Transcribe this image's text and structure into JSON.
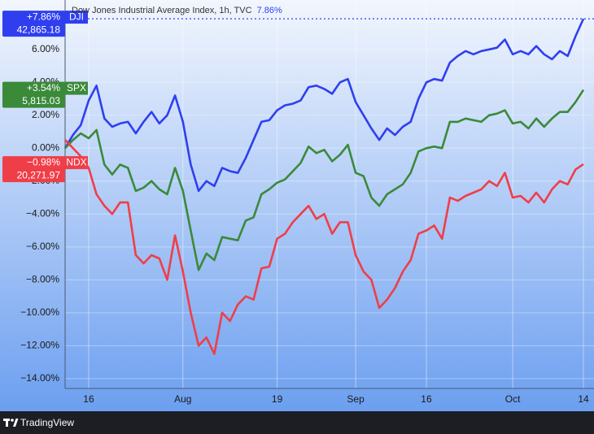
{
  "chart_data": {
    "type": "line",
    "legend_title": "Dow Jones Industrial Average Index, 1h, TVC",
    "legend_value": "7.86%",
    "watermark": "TradingView",
    "categories": [
      "",
      "",
      "",
      "16",
      "",
      "",
      "",
      "",
      "",
      "",
      "",
      "",
      "",
      "",
      "",
      "Aug",
      "",
      "",
      "",
      "",
      "",
      "",
      "",
      "",
      "",
      "",
      "",
      "19",
      "",
      "",
      "",
      "",
      "",
      "",
      "",
      "",
      "",
      "Sep",
      "",
      "",
      "",
      "",
      "",
      "",
      "",
      "",
      "16",
      "",
      "",
      "",
      "",
      "",
      "",
      "",
      "",
      "",
      "",
      "Oct",
      "",
      "",
      "",
      "",
      "",
      "",
      "",
      "",
      "14"
    ],
    "ylim": [
      -14.6,
      9.0
    ],
    "yticks": [
      {
        "value": -14,
        "label": "−14.00%"
      },
      {
        "value": -12,
        "label": "−12.00%"
      },
      {
        "value": -10,
        "label": "−10.00%"
      },
      {
        "value": -8,
        "label": "−8.00%"
      },
      {
        "value": -6,
        "label": "−6.00%"
      },
      {
        "value": -4,
        "label": "−4.00%"
      },
      {
        "value": -2,
        "label": "−2.00%"
      },
      {
        "value": 0,
        "label": "0.00%"
      },
      {
        "value": 2,
        "label": "2.00%"
      },
      {
        "value": 4,
        "label": "4.00%"
      },
      {
        "value": 6,
        "label": "6.00%"
      }
    ],
    "grid": true,
    "series": [
      {
        "name": "DJI",
        "color": "#2f3ff0",
        "last_label": "+7.86%",
        "last_price": "42,865.18",
        "values": [
          0,
          0.8,
          1.4,
          2.9,
          3.8,
          1.8,
          1.3,
          1.5,
          1.6,
          0.9,
          1.6,
          2.2,
          1.5,
          2.0,
          3.2,
          1.6,
          -1.0,
          -2.6,
          -2.0,
          -2.3,
          -1.2,
          -1.4,
          -1.5,
          -0.6,
          0.5,
          1.6,
          1.7,
          2.3,
          2.6,
          2.7,
          2.9,
          3.7,
          3.8,
          3.6,
          3.3,
          4.0,
          4.2,
          2.8,
          2.0,
          1.2,
          0.5,
          1.2,
          0.8,
          1.3,
          1.6,
          3.0,
          4.0,
          4.2,
          4.1,
          5.2,
          5.6,
          5.9,
          5.7,
          5.9,
          6.0,
          6.1,
          6.6,
          5.7,
          5.9,
          5.7,
          6.2,
          5.7,
          5.4,
          5.9,
          5.6,
          6.8,
          7.86
        ]
      },
      {
        "name": "SPX",
        "color": "#3a8a3a",
        "last_label": "+3.54%",
        "last_price": "5,815.03",
        "values": [
          0,
          0.5,
          0.9,
          0.6,
          1.1,
          -1.0,
          -1.6,
          -1.0,
          -1.2,
          -2.6,
          -2.4,
          -2.0,
          -2.5,
          -2.8,
          -1.2,
          -2.6,
          -5.0,
          -7.4,
          -6.4,
          -6.8,
          -5.4,
          -5.5,
          -5.6,
          -4.4,
          -4.2,
          -2.8,
          -2.5,
          -2.1,
          -1.9,
          -1.4,
          -0.9,
          0.1,
          -0.3,
          -0.1,
          -0.8,
          -0.4,
          0.2,
          -1.5,
          -1.7,
          -3.0,
          -3.5,
          -2.8,
          -2.5,
          -2.2,
          -1.5,
          -0.2,
          0.0,
          0.1,
          0.0,
          1.6,
          1.6,
          1.8,
          1.7,
          1.6,
          2.0,
          2.1,
          2.3,
          1.5,
          1.6,
          1.2,
          1.8,
          1.3,
          1.8,
          2.2,
          2.2,
          2.8,
          3.54
        ]
      },
      {
        "name": "NDX",
        "color": "#f03e48",
        "last_label": "−0.98%",
        "last_price": "20,271.97",
        "values": [
          0.5,
          0,
          -0.5,
          -1.2,
          -2.8,
          -3.5,
          -4.0,
          -3.3,
          -3.3,
          -6.5,
          -7.0,
          -6.5,
          -6.7,
          -8.0,
          -5.3,
          -7.5,
          -10.0,
          -12.0,
          -11.5,
          -12.5,
          -10.0,
          -10.5,
          -9.5,
          -9.0,
          -9.2,
          -7.3,
          -7.2,
          -5.5,
          -5.2,
          -4.5,
          -4.0,
          -3.5,
          -4.3,
          -4.0,
          -5.2,
          -4.5,
          -4.5,
          -6.5,
          -7.5,
          -8.0,
          -9.7,
          -9.2,
          -8.5,
          -7.5,
          -6.8,
          -5.2,
          -5.0,
          -4.7,
          -5.5,
          -3.0,
          -3.2,
          -2.9,
          -2.7,
          -2.5,
          -2.0,
          -2.3,
          -1.5,
          -3.0,
          -2.9,
          -3.3,
          -2.7,
          -3.3,
          -2.5,
          -2.0,
          -2.2,
          -1.3,
          -0.98
        ]
      }
    ]
  }
}
